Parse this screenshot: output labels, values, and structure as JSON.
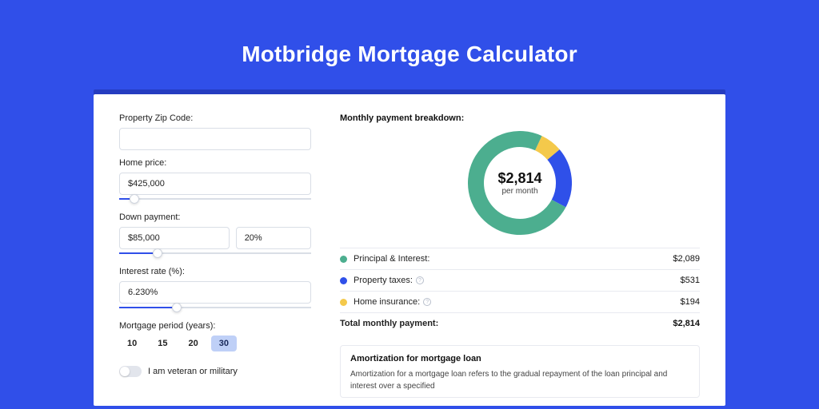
{
  "page": {
    "title": "Motbridge Mortgage Calculator",
    "background_color": "#304fe9",
    "card_accent_color": "#253cc0"
  },
  "form": {
    "zip": {
      "label": "Property Zip Code:",
      "value": ""
    },
    "home_price": {
      "label": "Home price:",
      "value": "$425,000",
      "slider_pct": 8
    },
    "down_payment": {
      "label": "Down payment:",
      "amount": "$85,000",
      "percent": "20%",
      "slider_pct": 20
    },
    "interest_rate": {
      "label": "Interest rate (%):",
      "value": "6.230%",
      "slider_pct": 30
    },
    "mortgage_period": {
      "label": "Mortgage period (years):",
      "options": [
        "10",
        "15",
        "20",
        "30"
      ],
      "active_index": 3
    },
    "veteran": {
      "label": "I am veteran or military",
      "value": false
    }
  },
  "breakdown": {
    "title": "Monthly payment breakdown:",
    "center_value": "$2,814",
    "center_sub": "per month",
    "items": [
      {
        "label": "Principal & Interest:",
        "value": "$2,089",
        "color": "#4cae8f",
        "info": false,
        "fraction": 0.742
      },
      {
        "label": "Property taxes:",
        "value": "$531",
        "color": "#2f50e9",
        "info": true,
        "fraction": 0.189
      },
      {
        "label": "Home insurance:",
        "value": "$194",
        "color": "#f4c94b",
        "info": true,
        "fraction": 0.069
      }
    ],
    "total": {
      "label": "Total monthly payment:",
      "value": "$2,814"
    },
    "donut": {
      "colors": {
        "pi": "#4cae8f",
        "tax": "#2f50e9",
        "ins": "#f4c94b"
      },
      "thickness": 20,
      "radius": 55
    }
  },
  "amortization": {
    "title": "Amortization for mortgage loan",
    "body": "Amortization for a mortgage loan refers to the gradual repayment of the loan principal and interest over a specified"
  }
}
